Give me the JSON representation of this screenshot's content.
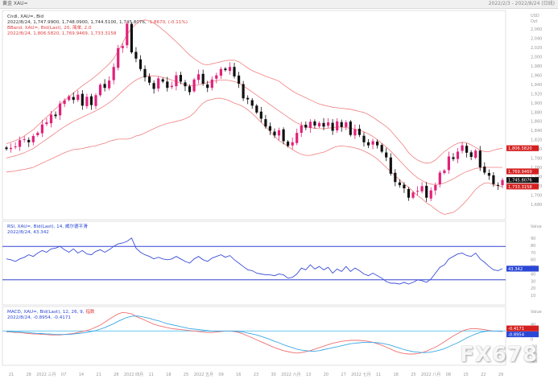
{
  "window": {
    "title": "黄金 XAU=",
    "right_text": "2022/2/3 - 2022/8/24 (日线)"
  },
  "price_panel": {
    "line1": "Cndl, XAU=, Bid",
    "line2_prefix": "2022/8/24, 1,747.9900, 1,748.0900, 1,744.5100, 1,745.8076, ",
    "line2_change": "-1.8670, (-0.11%)",
    "line3": "BBand, XAU=, Bid(Last), 20, 简单, 2.0",
    "line4": "2022/8/24, 1,806.5820, 1,769.9469, 1,733.3158",
    "unit": "USD",
    "unit2": "Ozt",
    "axis_ticks": [
      "2,060",
      "2,040",
      "2,020",
      "2,000",
      "1,980",
      "1,960",
      "1,940",
      "1,920",
      "1,900",
      "1,880",
      "1,860",
      "1,840",
      "1,820",
      "1,800",
      "1,780",
      "1,760",
      "1,740",
      "1,720",
      "1,700",
      "1,680"
    ],
    "tags": [
      {
        "text": "1,806.5820",
        "color": "#d42020"
      },
      {
        "text": "1,769.9469",
        "color": "#d42020"
      },
      {
        "text": "1,745.8076",
        "color": "#111111"
      },
      {
        "text": "1,733.3158",
        "color": "#d42020"
      }
    ]
  },
  "rsi_panel": {
    "line1": "RSI, XAU=, Bid(Last), 14, 威尔德平滑",
    "line2": "2022/8/24, 43.342",
    "unit": "Value",
    "axis_ticks": [
      "90",
      "80",
      "70",
      "60",
      "50",
      "40",
      "30",
      "20",
      "10"
    ],
    "tag": {
      "text": "43.342",
      "color": "#2b47d6"
    }
  },
  "macd_panel": {
    "line1_prefix": "MACD, XAU=, Bid(Last), 12, 26, 9, ",
    "line1_tag": "指数",
    "line2": "2022/8/24, -0.8954, -0.4171",
    "unit": "Value",
    "axis_ticks": [
      "40",
      "20",
      "0",
      "-20",
      "-40",
      "-60"
    ],
    "tags": [
      {
        "text": "-0.4171",
        "color": "#d42020"
      },
      {
        "text": "-0.8954",
        "color": "#2b47d6"
      }
    ]
  },
  "x_axis": {
    "labels": [
      "21",
      "28",
      "2022 三月",
      "07",
      "14",
      "21",
      "28",
      "2022 四月",
      "11",
      "18",
      "25",
      "2022 五月",
      "09",
      "16",
      "23",
      "30",
      "2022 六月",
      "13",
      "20",
      "27",
      "2022 七月",
      "11",
      "18",
      "25",
      "2022 八月",
      "08",
      "15",
      "22",
      "29"
    ]
  },
  "watermark": "FX678",
  "colors": {
    "up": "#e0217a",
    "down": "#111111",
    "band": "#f08080",
    "rsi": "#3a4ed8",
    "rsi_bound": "#3346d2",
    "macd": "#f07070",
    "signal": "#3aa8e6",
    "macd_zero": "#6ac8f0"
  },
  "chart_data": [
    {
      "type": "candlestick",
      "title": "Cndl, XAU=, Bid",
      "ylabel": "USD Ozt",
      "ylim": [
        1670,
        2070
      ],
      "x_range": [
        "2022-02-03",
        "2022-08-24"
      ],
      "close": [
        1805,
        1807,
        1810,
        1822,
        1824,
        1818,
        1830,
        1836,
        1852,
        1856,
        1871,
        1868,
        1892,
        1898,
        1906,
        1899,
        1909,
        1888,
        1905,
        1889,
        1908,
        1928,
        1922,
        1936,
        1962,
        1998,
        2002,
        2045,
        1990,
        1978,
        1958,
        1942,
        1932,
        1920,
        1940,
        1934,
        1922,
        1926,
        1946,
        1934,
        1925,
        1914,
        1938,
        1948,
        1930,
        1922,
        1938,
        1946,
        1958,
        1956,
        1962,
        1944,
        1930,
        1902,
        1900,
        1888,
        1875,
        1863,
        1848,
        1840,
        1831,
        1841,
        1820,
        1811,
        1818,
        1836,
        1850,
        1846,
        1857,
        1850,
        1855,
        1848,
        1856,
        1840,
        1858,
        1847,
        1856,
        1832,
        1843,
        1832,
        1818,
        1812,
        1820,
        1812,
        1800,
        1789,
        1758,
        1742,
        1736,
        1730,
        1712,
        1722,
        1725,
        1734,
        1712,
        1726,
        1736,
        1760,
        1764,
        1791,
        1786,
        1800,
        1812,
        1798,
        1790,
        1802,
        1770,
        1760,
        1754,
        1738,
        1736,
        1745.8
      ]
    },
    {
      "type": "line",
      "title": "BBand, XAU=, Bid(Last), 20, 简单, 2.0",
      "series": [
        {
          "name": "Upper",
          "values": [
            1815,
            1818,
            1821,
            1825,
            1830,
            1836,
            1842,
            1850,
            1858,
            1866,
            1874,
            1882,
            1890,
            1898,
            1905,
            1912,
            1919,
            1926,
            1932,
            1938,
            1945,
            1952,
            1960,
            1968,
            1978,
            1992,
            2008,
            2024,
            2036,
            2044,
            2050,
            2052,
            2050,
            2046,
            2040,
            2033,
            2026,
            2018,
            2010,
            2002,
            1993,
            1985,
            1978,
            1972,
            1967,
            1966,
            1968,
            1970,
            1972,
            1974,
            1975,
            1975,
            1972,
            1966,
            1960,
            1955,
            1951,
            1948,
            1944,
            1941,
            1938,
            1935,
            1928,
            1922,
            1916,
            1911,
            1907,
            1903,
            1899,
            1895,
            1891,
            1889,
            1887,
            1885,
            1884,
            1883,
            1882,
            1881,
            1879,
            1877,
            1875,
            1871,
            1866,
            1860,
            1854,
            1848,
            1840,
            1830,
            1820,
            1810,
            1798,
            1790,
            1784,
            1780,
            1778,
            1779,
            1784,
            1792,
            1800,
            1806,
            1812,
            1816,
            1818,
            1817,
            1813,
            1808,
            1803,
            1800,
            1800,
            1803,
            1805,
            1806.6
          ]
        },
        {
          "name": "Middle",
          "values": [
            1788,
            1790,
            1792,
            1795,
            1798,
            1802,
            1806,
            1812,
            1818,
            1824,
            1830,
            1836,
            1842,
            1848,
            1853,
            1858,
            1862,
            1866,
            1870,
            1874,
            1878,
            1883,
            1888,
            1894,
            1900,
            1908,
            1916,
            1924,
            1931,
            1937,
            1941,
            1944,
            1945,
            1945,
            1944,
            1942,
            1940,
            1937,
            1934,
            1931,
            1928,
            1926,
            1926,
            1928,
            1930,
            1932,
            1934,
            1936,
            1937,
            1937,
            1936,
            1934,
            1931,
            1926,
            1920,
            1914,
            1908,
            1902,
            1896,
            1890,
            1884,
            1878,
            1872,
            1866,
            1860,
            1855,
            1851,
            1848,
            1846,
            1845,
            1844,
            1844,
            1845,
            1846,
            1847,
            1847,
            1846,
            1845,
            1843,
            1841,
            1838,
            1834,
            1829,
            1823,
            1816,
            1809,
            1801,
            1792,
            1783,
            1774,
            1765,
            1757,
            1750,
            1745,
            1740,
            1738,
            1737,
            1738,
            1740,
            1744,
            1748,
            1753,
            1758,
            1762,
            1765,
            1768,
            1769,
            1770,
            1770,
            1770,
            1770,
            1769.9
          ]
        },
        {
          "name": "Lower",
          "values": [
            1761,
            1762,
            1763,
            1765,
            1766,
            1768,
            1770,
            1774,
            1778,
            1782,
            1786,
            1790,
            1794,
            1798,
            1801,
            1804,
            1805,
            1806,
            1808,
            1810,
            1811,
            1814,
            1816,
            1820,
            1822,
            1824,
            1824,
            1824,
            1826,
            1830,
            1832,
            1836,
            1840,
            1844,
            1848,
            1851,
            1854,
            1856,
            1858,
            1860,
            1863,
            1867,
            1874,
            1884,
            1893,
            1898,
            1900,
            1902,
            1902,
            1900,
            1897,
            1893,
            1890,
            1886,
            1880,
            1873,
            1865,
            1856,
            1848,
            1839,
            1830,
            1821,
            1816,
            1810,
            1804,
            1799,
            1795,
            1793,
            1793,
            1795,
            1797,
            1799,
            1803,
            1807,
            1810,
            1811,
            1810,
            1809,
            1807,
            1805,
            1801,
            1797,
            1792,
            1786,
            1778,
            1770,
            1762,
            1754,
            1746,
            1738,
            1732,
            1724,
            1716,
            1710,
            1702,
            1697,
            1690,
            1684,
            1680,
            1682,
            1684,
            1690,
            1698,
            1707,
            1717,
            1728,
            1735,
            1740,
            1740,
            1737,
            1735,
            1733.3
          ]
        }
      ]
    },
    {
      "type": "line",
      "title": "RSI, XAU=, Bid(Last), 14, 威尔德平滑",
      "ylim": [
        0,
        100
      ],
      "reference_lines": [
        70,
        30
      ],
      "values": [
        55,
        54,
        52,
        55,
        57,
        60,
        58,
        62,
        65,
        63,
        67,
        68,
        70,
        66,
        63,
        67,
        62,
        65,
        61,
        60,
        64,
        66,
        63,
        66,
        70,
        73,
        74,
        76,
        80,
        68,
        63,
        60,
        58,
        55,
        57,
        55,
        54,
        55,
        58,
        55,
        52,
        50,
        55,
        58,
        54,
        52,
        56,
        58,
        60,
        57,
        59,
        54,
        50,
        46,
        42,
        41,
        38,
        37,
        36,
        36,
        35,
        37,
        36,
        32,
        33,
        37,
        44,
        42,
        48,
        43,
        46,
        42,
        45,
        38,
        43,
        40,
        46,
        40,
        44,
        41,
        37,
        35,
        38,
        35,
        32,
        28,
        26,
        26,
        25,
        27,
        25,
        27,
        30,
        29,
        27,
        31,
        38,
        45,
        48,
        55,
        58,
        61,
        62,
        59,
        58,
        62,
        55,
        51,
        46,
        42,
        41,
        43.34
      ]
    },
    {
      "type": "line",
      "title": "MACD, XAU=, Bid(Last), 12, 26, 9, 指数",
      "ylim": [
        -70,
        50
      ],
      "series": [
        {
          "name": "MACD",
          "values": [
            -2,
            -2,
            -3,
            -3,
            -4,
            -5,
            -6,
            -6,
            -7,
            -7,
            -8,
            -8,
            -8,
            -7,
            -6,
            -5,
            -3,
            -1,
            1,
            4,
            8,
            12,
            18,
            24,
            30,
            35,
            38,
            37,
            35,
            30,
            26,
            22,
            18,
            14,
            11,
            9,
            7,
            5,
            4,
            3,
            2,
            1,
            0,
            -1,
            -2,
            -3,
            -3,
            -2,
            -1,
            0,
            0,
            -1,
            -3,
            -6,
            -10,
            -14,
            -18,
            -22,
            -26,
            -30,
            -34,
            -37,
            -40,
            -42,
            -44,
            -45,
            -44,
            -42,
            -40,
            -37,
            -34,
            -31,
            -28,
            -25,
            -23,
            -21,
            -20,
            -19,
            -19,
            -19,
            -20,
            -21,
            -23,
            -26,
            -29,
            -33,
            -37,
            -41,
            -44,
            -46,
            -47,
            -47,
            -46,
            -44,
            -41,
            -37,
            -33,
            -28,
            -22,
            -16,
            -10,
            -5,
            0,
            3,
            5,
            5,
            4,
            3,
            1,
            0,
            -0.5,
            -0.8954
          ]
        },
        {
          "name": "Signal",
          "values": [
            -1,
            -1,
            -2,
            -2,
            -3,
            -3,
            -4,
            -5,
            -5,
            -6,
            -6,
            -7,
            -7,
            -7,
            -7,
            -6,
            -5,
            -4,
            -3,
            -1,
            1,
            4,
            7,
            11,
            15,
            20,
            24,
            28,
            30,
            31,
            30,
            28,
            26,
            23,
            21,
            18,
            15,
            13,
            11,
            9,
            7,
            5,
            4,
            3,
            2,
            1,
            0,
            0,
            0,
            0,
            0,
            0,
            -1,
            -2,
            -4,
            -6,
            -8,
            -11,
            -14,
            -17,
            -21,
            -24,
            -28,
            -31,
            -34,
            -37,
            -39,
            -40,
            -41,
            -41,
            -40,
            -38,
            -36,
            -34,
            -32,
            -30,
            -28,
            -26,
            -25,
            -24,
            -23,
            -23,
            -23,
            -24,
            -25,
            -27,
            -29,
            -32,
            -35,
            -38,
            -40,
            -42,
            -43,
            -44,
            -44,
            -43,
            -41,
            -39,
            -36,
            -32,
            -28,
            -24,
            -19,
            -14,
            -10,
            -6,
            -3,
            -1,
            0,
            0,
            -0.2,
            -0.4171
          ]
        }
      ],
      "reference_lines": [
        0
      ]
    }
  ]
}
